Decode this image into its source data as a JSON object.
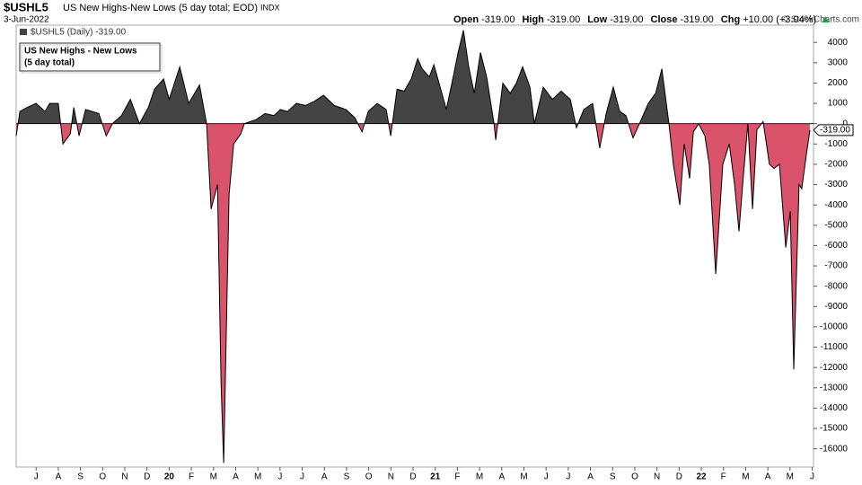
{
  "symbol": "$USHL5",
  "description": "US New Highs-New Lows (5 day total; EOD)",
  "exchange": "INDX",
  "date": "3-Jun-2022",
  "stats": [
    {
      "name": "Open",
      "value": -319,
      "label": "-319.00"
    },
    {
      "name": "High",
      "value": -319,
      "label": "-319.00"
    },
    {
      "name": "Low",
      "value": -319,
      "label": "-319.00"
    },
    {
      "name": "Close",
      "value": -319,
      "label": "-319.00"
    },
    {
      "name": "Chg",
      "value": 10,
      "label": "+10.00 (+3.04%)"
    }
  ],
  "credit": "© StockCharts.com",
  "legend_line": "$USHL5 (Daily) -319.00",
  "note_lines": [
    "US New Highs - New Lows",
    "(5 day total)"
  ],
  "chart_data": {
    "type": "area",
    "positive_color": "#444444",
    "negative_color": "#d9536b",
    "line_color": "#000000",
    "last_label": "-319.00",
    "x": [
      -0.9,
      -0.73,
      -0.4,
      0,
      0.4,
      0.61,
      1.0,
      1.21,
      1.54,
      1.7,
      1.94,
      2.23,
      2.83,
      3.16,
      3.44,
      3.85,
      4.25,
      4.66,
      5.06,
      5.34,
      5.75,
      6.0,
      6.48,
      6.88,
      7.37,
      7.69,
      7.89,
      8.18,
      8.34,
      8.46,
      8.7,
      8.91,
      9.23,
      9.39,
      9.92,
      10.32,
      10.73,
      11.01,
      11.34,
      11.74,
      12.15,
      12.55,
      12.96,
      13.44,
      13.97,
      14.37,
      14.7,
      14.98,
      15.38,
      15.79,
      15.99,
      16.28,
      16.6,
      16.92,
      17.21,
      17.41,
      17.73,
      17.94,
      18.22,
      18.5,
      18.83,
      19.03,
      19.27,
      19.51,
      19.76,
      20.04,
      20.32,
      20.65,
      20.73,
      21.05,
      21.38,
      21.66,
      21.94,
      22.27,
      22.47,
      22.87,
      23.28,
      23.68,
      24.09,
      24.37,
      24.7,
      25.1,
      25.42,
      25.71,
      26.03,
      26.32,
      26.6,
      26.92,
      27.21,
      27.61,
      27.94,
      28.22,
      28.54,
      28.74,
      29.03,
      29.23,
      29.47,
      29.64,
      29.88,
      30.16,
      30.36,
      30.65,
      30.97,
      31.26,
      31.5,
      31.7,
      31.9,
      32.1,
      32.31,
      32.51,
      32.79,
      33.07,
      33.28,
      33.52,
      33.81,
      34.01,
      34.17,
      34.41,
      34.53,
      34.74,
      34.9
    ],
    "values": [
      -600,
      600,
      800,
      1000,
      600,
      1000,
      1000,
      -1000,
      -500,
      800,
      -600,
      700,
      500,
      -600,
      0,
      400,
      1200,
      0,
      800,
      1700,
      2200,
      1200,
      2800,
      1000,
      1900,
      0,
      -4200,
      -3000,
      -12800,
      -16700,
      -3500,
      -1000,
      -500,
      0,
      200,
      500,
      400,
      700,
      600,
      1000,
      900,
      1100,
      1400,
      900,
      700,
      300,
      -400,
      600,
      1000,
      700,
      -600,
      1700,
      1600,
      2200,
      3200,
      2700,
      2300,
      2900,
      1800,
      700,
      2400,
      3500,
      4600,
      2800,
      1500,
      3500,
      2300,
      0,
      -800,
      2000,
      1500,
      2000,
      2800,
      1800,
      0,
      1800,
      1200,
      1600,
      1200,
      -200,
      700,
      1000,
      -1200,
      500,
      1800,
      600,
      400,
      -700,
      0,
      1000,
      1500,
      2700,
      0,
      -2000,
      -4000,
      -1000,
      -2700,
      -400,
      0,
      -600,
      -2000,
      -7400,
      -2000,
      -1000,
      -3000,
      -5300,
      -2500,
      0,
      -4200,
      -300,
      100,
      -2000,
      -2200,
      -2000,
      -6100,
      -4300,
      -12100,
      -3000,
      -3200,
      -1500,
      -319
    ],
    "xlim": [
      -0.9,
      35.06
    ],
    "xticks": [
      {
        "value": 0,
        "label": "J"
      },
      {
        "value": 1,
        "label": "A"
      },
      {
        "value": 2,
        "label": "S"
      },
      {
        "value": 3,
        "label": "O"
      },
      {
        "value": 4,
        "label": "N"
      },
      {
        "value": 5,
        "label": "D"
      },
      {
        "value": 6,
        "label": "20"
      },
      {
        "value": 7,
        "label": "F"
      },
      {
        "value": 8,
        "label": "M"
      },
      {
        "value": 9,
        "label": "A"
      },
      {
        "value": 10,
        "label": "M"
      },
      {
        "value": 11,
        "label": "J"
      },
      {
        "value": 12,
        "label": "J"
      },
      {
        "value": 13,
        "label": "A"
      },
      {
        "value": 14,
        "label": "S"
      },
      {
        "value": 15,
        "label": "O"
      },
      {
        "value": 16,
        "label": "N"
      },
      {
        "value": 17,
        "label": "D"
      },
      {
        "value": 18,
        "label": "21"
      },
      {
        "value": 19,
        "label": "F"
      },
      {
        "value": 20,
        "label": "M"
      },
      {
        "value": 21,
        "label": "A"
      },
      {
        "value": 22,
        "label": "M"
      },
      {
        "value": 23,
        "label": "J"
      },
      {
        "value": 24,
        "label": "J"
      },
      {
        "value": 25,
        "label": "A"
      },
      {
        "value": 26,
        "label": "S"
      },
      {
        "value": 27,
        "label": "O"
      },
      {
        "value": 28,
        "label": "N"
      },
      {
        "value": 29,
        "label": "D"
      },
      {
        "value": 30,
        "label": "22"
      },
      {
        "value": 31,
        "label": "F"
      },
      {
        "value": 32,
        "label": "M"
      },
      {
        "value": 33,
        "label": "A"
      },
      {
        "value": 34,
        "label": "M"
      },
      {
        "value": 35,
        "label": "J"
      }
    ],
    "ylim": [
      -16900,
      4850
    ],
    "yticks": [
      4000,
      3000,
      2000,
      1000,
      0,
      -1000,
      -2000,
      -3000,
      -4000,
      -5000,
      -6000,
      -7000,
      -8000,
      -9000,
      -10000,
      -11000,
      -12000,
      -13000,
      -14000,
      -15000,
      -16000
    ]
  }
}
